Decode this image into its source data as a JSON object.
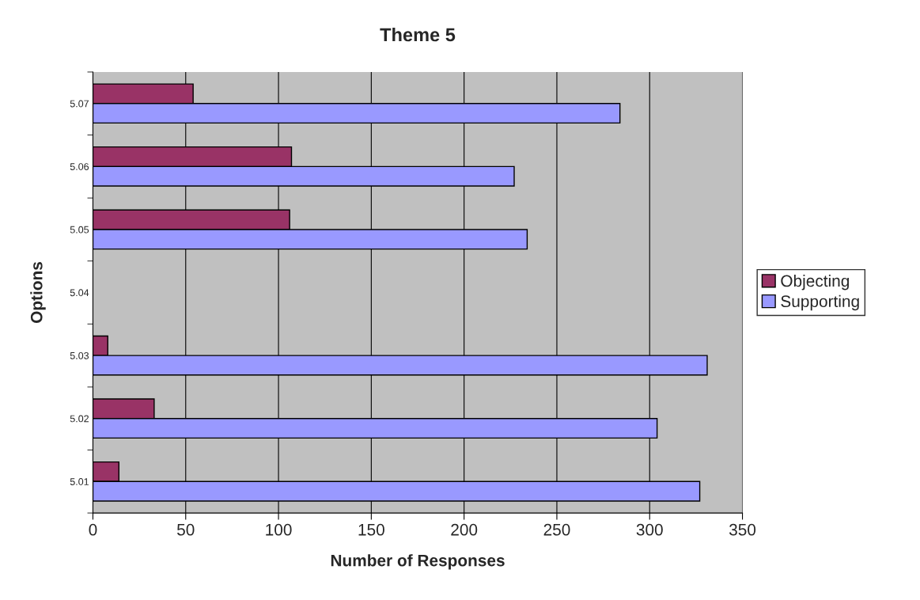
{
  "chart_data": {
    "type": "bar",
    "orientation": "horizontal",
    "title": "Theme 5",
    "xlabel": "Number of Responses",
    "ylabel": "Options",
    "categories": [
      "5.07",
      "5.06",
      "5.05",
      "5.04",
      "5.03",
      "5.02",
      "5.01"
    ],
    "series": [
      {
        "name": "Objecting",
        "color": "#993366",
        "values": [
          54,
          107,
          106,
          null,
          8,
          33,
          14
        ]
      },
      {
        "name": "Supporting",
        "color": "#9999ff",
        "values": [
          284,
          227,
          234,
          null,
          331,
          304,
          327
        ]
      }
    ],
    "xlim": [
      0,
      350
    ],
    "xticks": [
      0,
      50,
      100,
      150,
      200,
      250,
      300,
      350
    ],
    "grid": "x",
    "legend": "right"
  }
}
